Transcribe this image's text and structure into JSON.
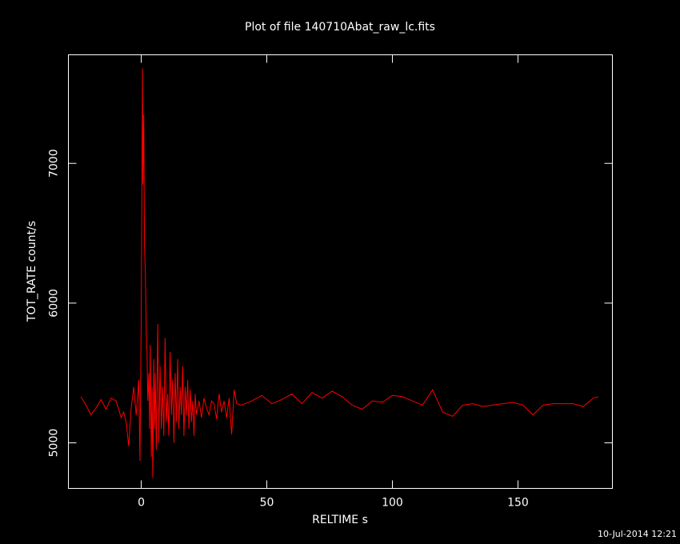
{
  "chart_data": {
    "type": "line",
    "title": "Plot of file 140710Abat_raw_lc.fits",
    "x_label": "RELTIME  s",
    "y_label": "TOT_RATE  count/s",
    "timestamp": "10-Jul-2014 12:21",
    "color": "#ff0000",
    "xlim": [
      -29,
      187.6
    ],
    "ylim": [
      4674,
      7777
    ],
    "xticks": [
      0,
      50,
      100,
      150
    ],
    "yticks": [
      5000,
      6000,
      7000
    ],
    "x": [
      -24,
      -22,
      -20,
      -18,
      -16,
      -14,
      -12,
      -10,
      -8,
      -7,
      -6,
      -5,
      -4,
      -3,
      -2,
      -1,
      -0.5,
      0,
      0.3,
      0.5,
      0.7,
      1,
      1.3,
      1.6,
      2,
      2.3,
      2.6,
      3,
      3.3,
      3.6,
      4,
      4.3,
      4.6,
      5,
      5.3,
      5.6,
      6,
      6.3,
      6.6,
      7,
      7.5,
      8,
      8.5,
      9,
      9.5,
      10,
      10.5,
      11,
      11.5,
      12,
      12.5,
      13,
      13.5,
      14,
      14.5,
      15,
      15.5,
      16,
      16.5,
      17,
      17.5,
      18,
      18.5,
      19,
      19.5,
      20,
      20.5,
      21,
      21.5,
      22,
      23,
      24,
      25,
      26,
      27,
      28,
      29,
      30,
      31,
      32,
      33,
      34,
      35,
      36,
      37,
      38,
      40,
      44,
      48,
      52,
      56,
      60,
      64,
      68,
      72,
      76,
      80,
      84,
      88,
      92,
      96,
      100,
      104,
      108,
      112,
      116,
      120,
      124,
      128,
      132,
      136,
      140,
      144,
      148,
      152,
      156,
      160,
      164,
      168,
      172,
      176,
      180,
      182
    ],
    "values": [
      5330,
      5270,
      5200,
      5250,
      5310,
      5240,
      5320,
      5300,
      5180,
      5220,
      5150,
      4977,
      5250,
      5400,
      5200,
      5450,
      4870,
      5900,
      7000,
      7680,
      6850,
      7350,
      6400,
      6250,
      5800,
      5650,
      5300,
      5500,
      5100,
      5700,
      4900,
      5400,
      4750,
      5600,
      5100,
      5500,
      4950,
      5450,
      5850,
      5000,
      5550,
      5100,
      5400,
      5050,
      5750,
      5150,
      5350,
      5050,
      5650,
      5200,
      5450,
      5000,
      5500,
      5150,
      5600,
      5100,
      5400,
      5200,
      5550,
      5050,
      5400,
      5200,
      5450,
      5100,
      5380,
      5150,
      5300,
      5050,
      5350,
      5200,
      5300,
      5180,
      5320,
      5250,
      5200,
      5300,
      5280,
      5170,
      5350,
      5220,
      5300,
      5180,
      5320,
      5060,
      5380,
      5280,
      5270,
      5300,
      5340,
      5280,
      5310,
      5350,
      5280,
      5360,
      5320,
      5370,
      5330,
      5270,
      5240,
      5300,
      5290,
      5340,
      5330,
      5300,
      5270,
      5380,
      5220,
      5190,
      5270,
      5280,
      5260,
      5270,
      5280,
      5290,
      5270,
      5200,
      5270,
      5280,
      5280,
      5280,
      5260,
      5320,
      5330
    ]
  }
}
